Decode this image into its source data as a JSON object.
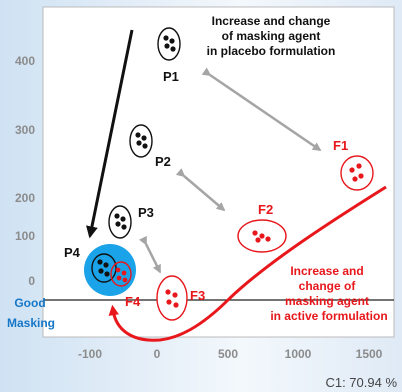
{
  "chart_data": {
    "type": "scatter",
    "x_ticks": [
      "-100",
      "0",
      "500",
      "1000",
      "1500"
    ],
    "y_ticks": [
      "400",
      "300",
      "200",
      "100",
      "0"
    ],
    "corner_label": "C1: 70.94 %",
    "placebo_annotation": [
      "Increase and change",
      "of masking agent",
      "in placebo formulation"
    ],
    "active_annotation": [
      "Increase and",
      "change of",
      "masking agent",
      "in active formulation"
    ],
    "good_masking": [
      "Good",
      "Masking"
    ],
    "placebo_points": [
      {
        "label": "P1"
      },
      {
        "label": "P2"
      },
      {
        "label": "P3"
      },
      {
        "label": "P4"
      }
    ],
    "active_points": [
      {
        "label": "F1"
      },
      {
        "label": "F2"
      },
      {
        "label": "F3"
      },
      {
        "label": "F4"
      }
    ],
    "colors": {
      "placebo": "#111111",
      "active": "#e8171b",
      "good_masking": "#1aa3e8",
      "arrows": "#a5a5a5"
    }
  }
}
